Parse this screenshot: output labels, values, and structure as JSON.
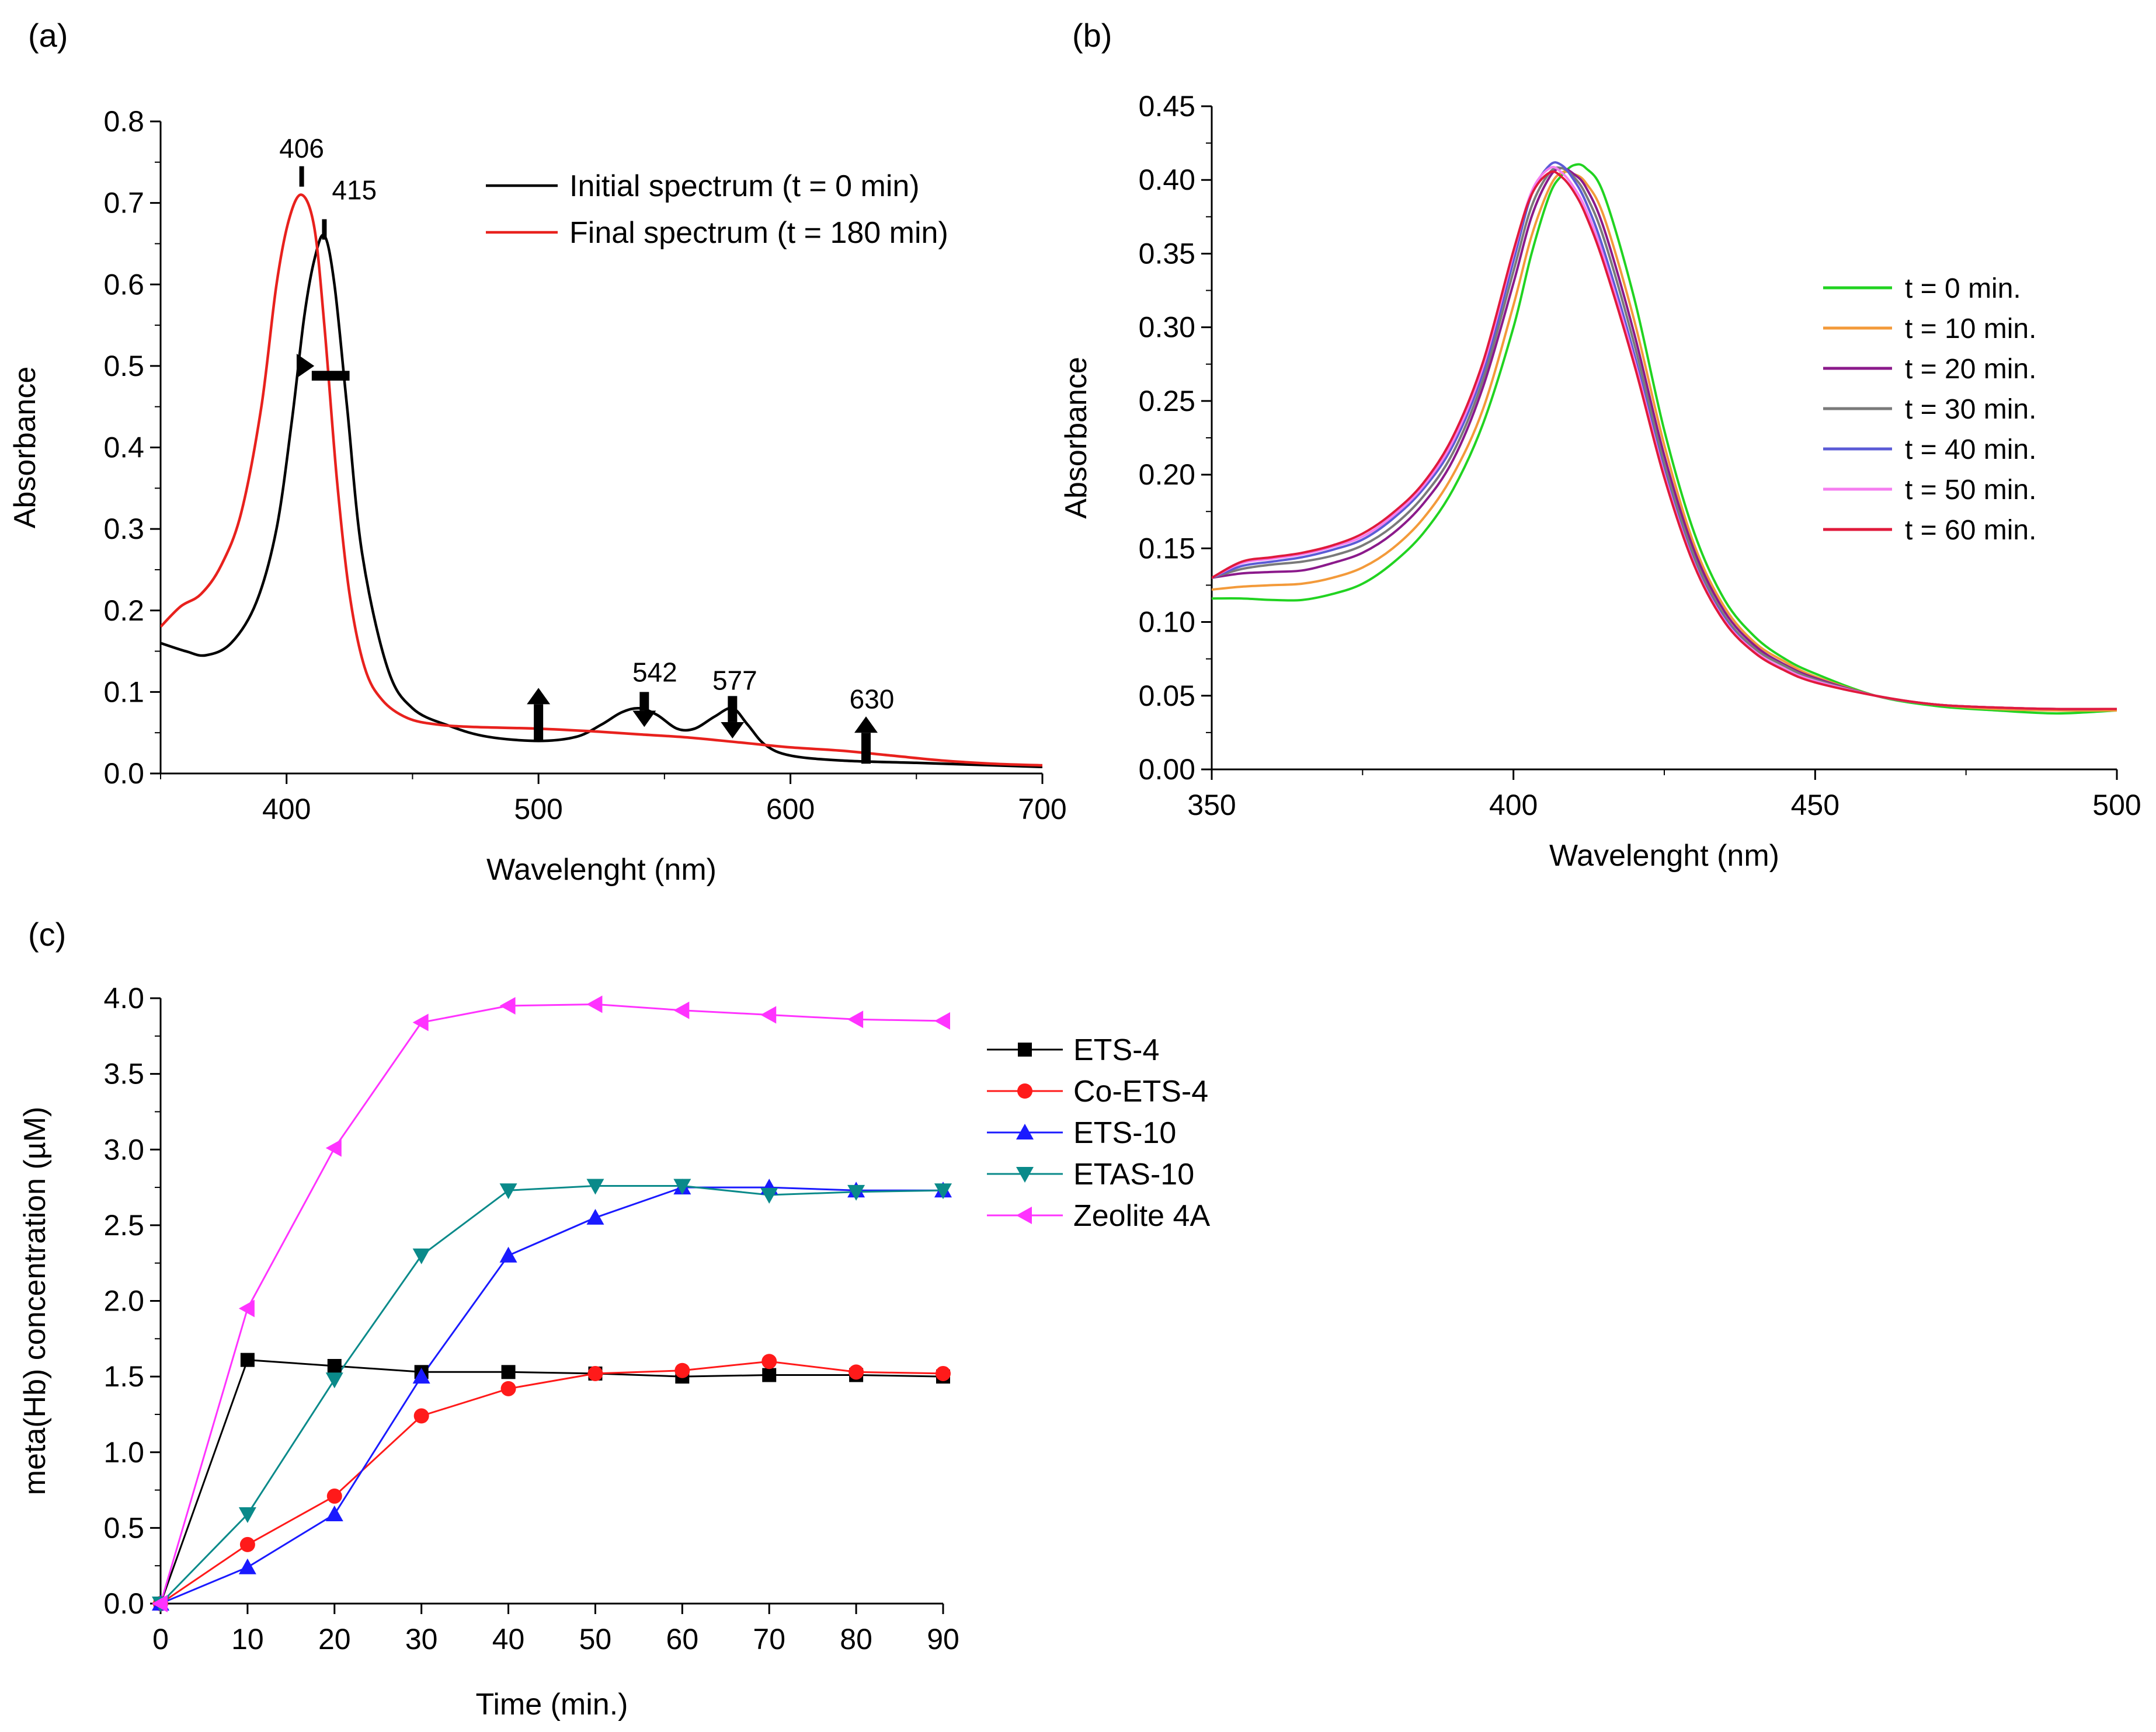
{
  "chart_data": [
    {
      "panel": "(a)",
      "type": "line",
      "title": "",
      "xlabel": "Wavelenght (nm)",
      "ylabel": "Absorbance",
      "xlim": [
        350,
        700
      ],
      "ylim": [
        0.0,
        0.8
      ],
      "xticks": [
        "400",
        "500",
        "600",
        "700"
      ],
      "yticks": [
        "0.0",
        "0.1",
        "0.2",
        "0.3",
        "0.4",
        "0.5",
        "0.6",
        "0.7",
        "0.8"
      ],
      "legend_position": "top-right",
      "series": [
        {
          "name": "Initial spectrum (t = 0 min)",
          "color": "#000000",
          "x": [
            350,
            360,
            368,
            378,
            388,
            396,
            402,
            407,
            411,
            415,
            419,
            424,
            430,
            440,
            450,
            465,
            480,
            500,
            515,
            525,
            533,
            540,
            547,
            555,
            562,
            570,
            577,
            583,
            590,
            600,
            620,
            650,
            680,
            700
          ],
          "y": [
            0.16,
            0.15,
            0.145,
            0.16,
            0.21,
            0.3,
            0.43,
            0.56,
            0.63,
            0.66,
            0.6,
            0.45,
            0.27,
            0.13,
            0.08,
            0.058,
            0.045,
            0.04,
            0.045,
            0.06,
            0.075,
            0.08,
            0.072,
            0.055,
            0.055,
            0.07,
            0.08,
            0.06,
            0.035,
            0.022,
            0.016,
            0.013,
            0.01,
            0.008
          ]
        },
        {
          "name": "Final spectrum (t = 180 min)",
          "color": "#e8211d",
          "x": [
            350,
            358,
            366,
            374,
            382,
            390,
            396,
            401,
            406,
            411,
            415,
            420,
            425,
            431,
            438,
            448,
            460,
            475,
            500,
            520,
            540,
            560,
            580,
            600,
            620,
            640,
            660,
            680,
            700
          ],
          "y": [
            0.18,
            0.205,
            0.22,
            0.255,
            0.32,
            0.45,
            0.6,
            0.68,
            0.71,
            0.67,
            0.55,
            0.36,
            0.22,
            0.13,
            0.09,
            0.068,
            0.06,
            0.057,
            0.055,
            0.052,
            0.048,
            0.044,
            0.038,
            0.032,
            0.028,
            0.022,
            0.016,
            0.012,
            0.01
          ]
        }
      ],
      "annotations": [
        "406",
        "415",
        "542",
        "577",
        "630"
      ]
    },
    {
      "panel": "(b)",
      "type": "line",
      "title": "",
      "xlabel": "Wavelenght (nm)",
      "ylabel": "Absorbance",
      "xlim": [
        350,
        500
      ],
      "ylim": [
        0.0,
        0.45
      ],
      "xticks": [
        "350",
        "400",
        "450",
        "500"
      ],
      "yticks": [
        "0.00",
        "0.05",
        "0.10",
        "0.15",
        "0.20",
        "0.25",
        "0.30",
        "0.35",
        "0.40",
        "0.45"
      ],
      "legend_position": "center-right",
      "x": [
        350,
        355,
        360,
        365,
        370,
        375,
        380,
        385,
        390,
        395,
        400,
        403,
        406,
        408,
        410,
        412,
        415,
        420,
        425,
        430,
        435,
        440,
        445,
        450,
        460,
        470,
        480,
        490,
        500
      ],
      "series": [
        {
          "name": "t = 0 min.",
          "color": "#21d321",
          "y": [
            0.116,
            0.116,
            0.115,
            0.115,
            0.119,
            0.126,
            0.14,
            0.16,
            0.19,
            0.235,
            0.3,
            0.35,
            0.39,
            0.403,
            0.41,
            0.408,
            0.39,
            0.32,
            0.23,
            0.16,
            0.115,
            0.09,
            0.075,
            0.065,
            0.05,
            0.043,
            0.04,
            0.038,
            0.04
          ]
        },
        {
          "name": "t = 10 min.",
          "color": "#f39a3a",
          "y": [
            0.122,
            0.124,
            0.125,
            0.126,
            0.13,
            0.137,
            0.15,
            0.17,
            0.2,
            0.245,
            0.315,
            0.362,
            0.395,
            0.405,
            0.404,
            0.398,
            0.375,
            0.305,
            0.22,
            0.152,
            0.11,
            0.086,
            0.073,
            0.063,
            0.05,
            0.044,
            0.041,
            0.04,
            0.04
          ]
        },
        {
          "name": "t = 20 min.",
          "color": "#8b1a8b",
          "y": [
            0.13,
            0.133,
            0.134,
            0.135,
            0.14,
            0.147,
            0.16,
            0.18,
            0.21,
            0.26,
            0.33,
            0.375,
            0.402,
            0.408,
            0.404,
            0.395,
            0.367,
            0.296,
            0.213,
            0.148,
            0.107,
            0.084,
            0.071,
            0.062,
            0.05,
            0.044,
            0.042,
            0.041,
            0.041
          ]
        },
        {
          "name": "t = 30 min.",
          "color": "#7a7a7a",
          "y": [
            0.13,
            0.136,
            0.139,
            0.141,
            0.145,
            0.152,
            0.165,
            0.185,
            0.215,
            0.265,
            0.338,
            0.382,
            0.405,
            0.408,
            0.402,
            0.39,
            0.36,
            0.289,
            0.207,
            0.144,
            0.104,
            0.082,
            0.07,
            0.061,
            0.05,
            0.044,
            0.042,
            0.041,
            0.041
          ]
        },
        {
          "name": "t = 40 min.",
          "color": "#5b5bd6",
          "y": [
            0.13,
            0.138,
            0.141,
            0.144,
            0.149,
            0.156,
            0.17,
            0.19,
            0.22,
            0.27,
            0.345,
            0.39,
            0.41,
            0.41,
            0.4,
            0.385,
            0.352,
            0.282,
            0.202,
            0.14,
            0.102,
            0.08,
            0.068,
            0.06,
            0.05,
            0.044,
            0.042,
            0.041,
            0.041
          ]
        },
        {
          "name": "t = 50 min.",
          "color": "#f57ef0",
          "y": [
            0.13,
            0.14,
            0.143,
            0.146,
            0.151,
            0.158,
            0.172,
            0.192,
            0.223,
            0.274,
            0.35,
            0.392,
            0.408,
            0.405,
            0.395,
            0.38,
            0.347,
            0.278,
            0.2,
            0.139,
            0.101,
            0.08,
            0.068,
            0.06,
            0.05,
            0.044,
            0.042,
            0.041,
            0.041
          ]
        },
        {
          "name": "t = 60 min.",
          "color": "#e01a3c",
          "y": [
            0.13,
            0.141,
            0.144,
            0.147,
            0.152,
            0.16,
            0.174,
            0.194,
            0.226,
            0.277,
            0.352,
            0.39,
            0.405,
            0.402,
            0.392,
            0.376,
            0.343,
            0.275,
            0.198,
            0.138,
            0.1,
            0.079,
            0.067,
            0.059,
            0.05,
            0.044,
            0.042,
            0.041,
            0.041
          ]
        }
      ]
    },
    {
      "panel": "(c)",
      "type": "line",
      "title": "",
      "xlabel": "Time (min.)",
      "ylabel": "meta(Hb) concentration (µM)",
      "xlim": [
        0,
        90
      ],
      "ylim": [
        0.0,
        4.0
      ],
      "xticks": [
        "0",
        "10",
        "20",
        "30",
        "40",
        "50",
        "60",
        "70",
        "80",
        "90"
      ],
      "yticks": [
        "0.0",
        "0.5",
        "1.0",
        "1.5",
        "2.0",
        "2.5",
        "3.0",
        "3.5",
        "4.0"
      ],
      "legend_position": "top-right",
      "x": [
        0,
        10,
        20,
        30,
        40,
        50,
        60,
        70,
        80,
        90
      ],
      "series": [
        {
          "name": "ETS-4",
          "color": "#000000",
          "marker": "square",
          "values": [
            0.0,
            1.61,
            1.57,
            1.53,
            1.53,
            1.52,
            1.5,
            1.51,
            1.51,
            1.5
          ]
        },
        {
          "name": "Co-ETS-4",
          "color": "#ff1a1a",
          "marker": "circle",
          "values": [
            0.0,
            0.39,
            0.71,
            1.24,
            1.42,
            1.52,
            1.54,
            1.6,
            1.53,
            1.52
          ]
        },
        {
          "name": "ETS-10",
          "color": "#1a1aff",
          "marker": "triangle-up",
          "values": [
            0.0,
            0.24,
            0.59,
            1.5,
            2.3,
            2.55,
            2.75,
            2.75,
            2.73,
            2.73
          ]
        },
        {
          "name": "ETAS-10",
          "color": "#0a8a8a",
          "marker": "triangle-down",
          "values": [
            0.0,
            0.59,
            1.48,
            2.3,
            2.73,
            2.76,
            2.76,
            2.7,
            2.72,
            2.73
          ]
        },
        {
          "name": "Zeolite 4A",
          "color": "#ff33ff",
          "marker": "triangle-left",
          "values": [
            0.0,
            1.95,
            3.01,
            3.84,
            3.95,
            3.96,
            3.92,
            3.89,
            3.86,
            3.85
          ]
        }
      ]
    }
  ]
}
